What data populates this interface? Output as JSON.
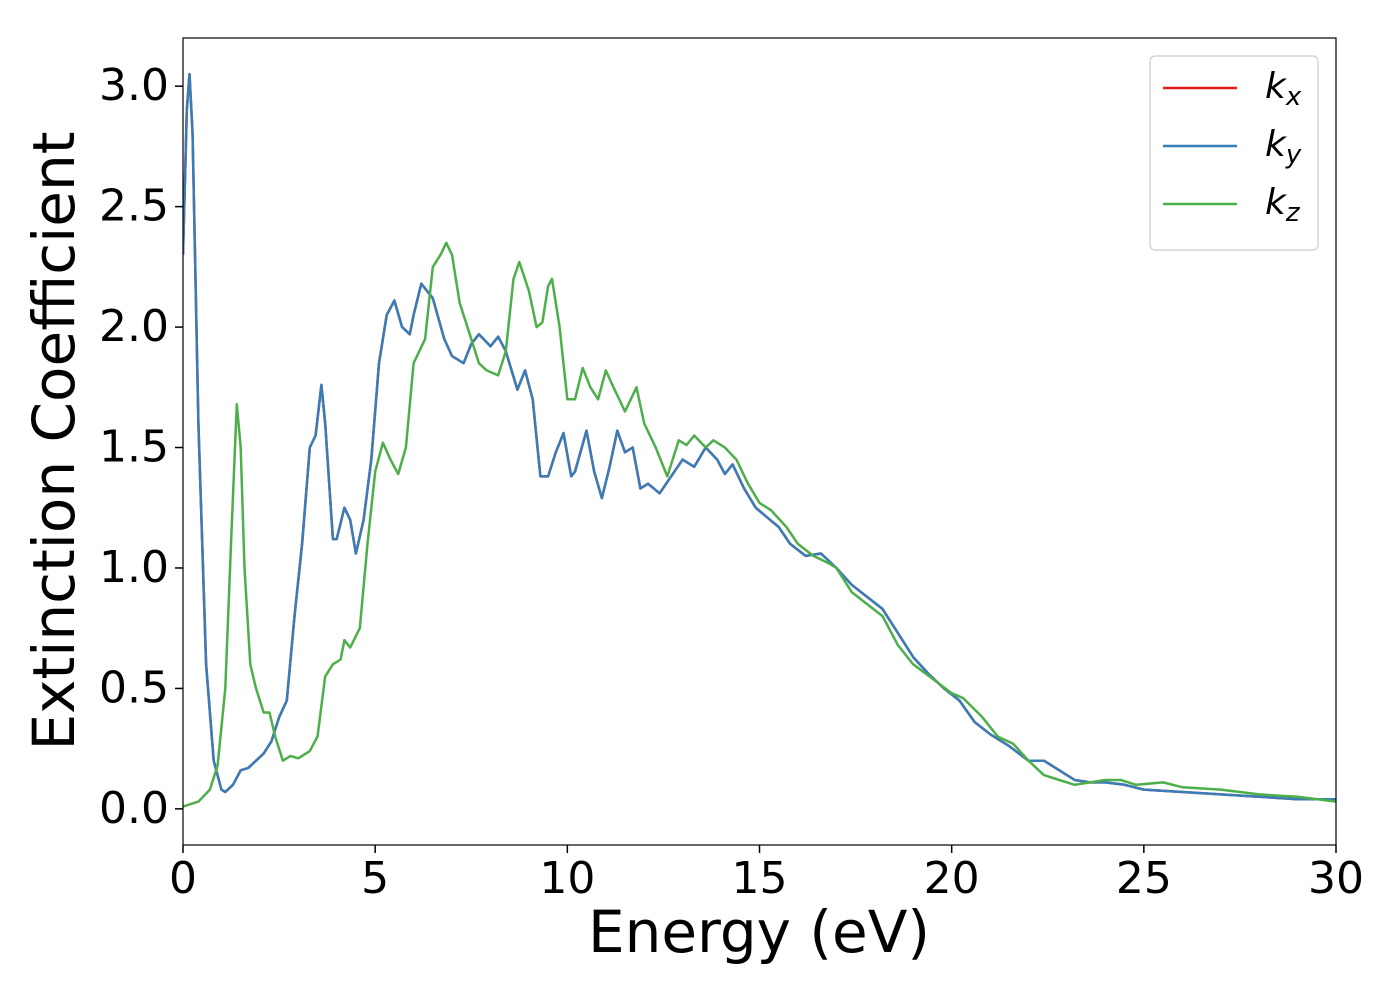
{
  "chart_data": {
    "type": "line",
    "xlabel": "Energy (eV)",
    "ylabel": "Extinction Coefficient",
    "xlim": [
      0,
      30
    ],
    "xticks": [
      0,
      5,
      10,
      15,
      20,
      25,
      30
    ],
    "ylim": [
      -0.15,
      3.2
    ],
    "yticks": [
      {
        "value": 0,
        "label": "0.0"
      },
      0.5,
      {
        "value": 1,
        "label": "1.0"
      },
      1.5,
      {
        "value": 2,
        "label": "2.0"
      },
      2.5,
      {
        "value": 3,
        "label": "3.0"
      }
    ],
    "grid": false,
    "legend": "upper right",
    "series": [
      {
        "name": "kx",
        "color": "#e41a1c",
        "x": [
          0,
          0.1,
          0.17,
          0.25,
          0.4,
          0.6,
          0.8,
          1.0,
          1.1,
          1.3,
          1.5,
          1.7,
          1.9,
          2.1,
          2.3,
          2.5,
          2.7,
          2.9,
          3.1,
          3.3,
          3.45,
          3.6,
          3.7,
          3.9,
          4.0,
          4.2,
          4.35,
          4.5,
          4.7,
          4.9,
          5.1,
          5.3,
          5.5,
          5.7,
          5.9,
          6.0,
          6.2,
          6.5,
          6.8,
          7.0,
          7.3,
          7.5,
          7.7,
          8.0,
          8.2,
          8.4,
          8.7,
          8.9,
          9.1,
          9.3,
          9.5,
          9.7,
          9.9,
          10.1,
          10.2,
          10.5,
          10.7,
          10.9,
          11.1,
          11.3,
          11.5,
          11.7,
          11.9,
          12.1,
          12.4,
          12.7,
          13.0,
          13.3,
          13.6,
          13.9,
          14.1,
          14.3,
          14.6,
          14.9,
          15.2,
          15.5,
          15.8,
          16.2,
          16.6,
          17.0,
          17.4,
          17.8,
          18.2,
          18.6,
          19.0,
          19.4,
          19.8,
          20.2,
          20.6,
          21.0,
          21.5,
          22.0,
          22.4,
          22.8,
          23.2,
          23.6,
          24.0,
          24.5,
          25.0,
          26.0,
          27.0,
          28.0,
          29.0,
          30.0
        ],
        "values": [
          2.3,
          2.9,
          3.05,
          2.8,
          1.6,
          0.6,
          0.2,
          0.08,
          0.07,
          0.1,
          0.16,
          0.17,
          0.2,
          0.23,
          0.28,
          0.38,
          0.45,
          0.8,
          1.1,
          1.5,
          1.55,
          1.76,
          1.6,
          1.12,
          1.12,
          1.25,
          1.2,
          1.06,
          1.2,
          1.45,
          1.85,
          2.05,
          2.11,
          2.0,
          1.97,
          2.05,
          2.18,
          2.12,
          1.95,
          1.88,
          1.85,
          1.93,
          1.97,
          1.92,
          1.96,
          1.9,
          1.74,
          1.82,
          1.7,
          1.38,
          1.38,
          1.48,
          1.56,
          1.38,
          1.4,
          1.57,
          1.4,
          1.29,
          1.42,
          1.57,
          1.48,
          1.5,
          1.33,
          1.35,
          1.31,
          1.38,
          1.45,
          1.42,
          1.5,
          1.45,
          1.39,
          1.43,
          1.33,
          1.25,
          1.21,
          1.17,
          1.1,
          1.05,
          1.06,
          1.0,
          0.93,
          0.88,
          0.83,
          0.73,
          0.63,
          0.56,
          0.5,
          0.45,
          0.36,
          0.31,
          0.26,
          0.2,
          0.2,
          0.16,
          0.12,
          0.11,
          0.11,
          0.1,
          0.08,
          0.07,
          0.06,
          0.05,
          0.04,
          0.04
        ]
      },
      {
        "name": "ky",
        "color": "#377eb8",
        "x": [
          0,
          0.1,
          0.17,
          0.25,
          0.4,
          0.6,
          0.8,
          1.0,
          1.1,
          1.3,
          1.5,
          1.7,
          1.9,
          2.1,
          2.3,
          2.5,
          2.7,
          2.9,
          3.1,
          3.3,
          3.45,
          3.6,
          3.7,
          3.9,
          4.0,
          4.2,
          4.35,
          4.5,
          4.7,
          4.9,
          5.1,
          5.3,
          5.5,
          5.7,
          5.9,
          6.0,
          6.2,
          6.5,
          6.8,
          7.0,
          7.3,
          7.5,
          7.7,
          8.0,
          8.2,
          8.4,
          8.7,
          8.9,
          9.1,
          9.3,
          9.5,
          9.7,
          9.9,
          10.1,
          10.2,
          10.5,
          10.7,
          10.9,
          11.1,
          11.3,
          11.5,
          11.7,
          11.9,
          12.1,
          12.4,
          12.7,
          13.0,
          13.3,
          13.6,
          13.9,
          14.1,
          14.3,
          14.6,
          14.9,
          15.2,
          15.5,
          15.8,
          16.2,
          16.6,
          17.0,
          17.4,
          17.8,
          18.2,
          18.6,
          19.0,
          19.4,
          19.8,
          20.2,
          20.6,
          21.0,
          21.5,
          22.0,
          22.4,
          22.8,
          23.2,
          23.6,
          24.0,
          24.5,
          25.0,
          26.0,
          27.0,
          28.0,
          29.0,
          30.0
        ],
        "values": [
          2.3,
          2.9,
          3.05,
          2.8,
          1.6,
          0.6,
          0.2,
          0.08,
          0.07,
          0.1,
          0.16,
          0.17,
          0.2,
          0.23,
          0.28,
          0.38,
          0.45,
          0.8,
          1.1,
          1.5,
          1.55,
          1.76,
          1.6,
          1.12,
          1.12,
          1.25,
          1.2,
          1.06,
          1.2,
          1.45,
          1.85,
          2.05,
          2.11,
          2.0,
          1.97,
          2.05,
          2.18,
          2.12,
          1.95,
          1.88,
          1.85,
          1.93,
          1.97,
          1.92,
          1.96,
          1.9,
          1.74,
          1.82,
          1.7,
          1.38,
          1.38,
          1.48,
          1.56,
          1.38,
          1.4,
          1.57,
          1.4,
          1.29,
          1.42,
          1.57,
          1.48,
          1.5,
          1.33,
          1.35,
          1.31,
          1.38,
          1.45,
          1.42,
          1.5,
          1.45,
          1.39,
          1.43,
          1.33,
          1.25,
          1.21,
          1.17,
          1.1,
          1.05,
          1.06,
          1.0,
          0.93,
          0.88,
          0.83,
          0.73,
          0.63,
          0.56,
          0.5,
          0.45,
          0.36,
          0.31,
          0.26,
          0.2,
          0.2,
          0.16,
          0.12,
          0.11,
          0.11,
          0.1,
          0.08,
          0.07,
          0.06,
          0.05,
          0.04,
          0.04
        ]
      },
      {
        "name": "kz",
        "color": "#4daf4a",
        "x": [
          0,
          0.4,
          0.7,
          0.9,
          1.1,
          1.25,
          1.4,
          1.5,
          1.6,
          1.75,
          1.9,
          2.1,
          2.25,
          2.4,
          2.6,
          2.8,
          3.0,
          3.3,
          3.5,
          3.7,
          3.9,
          4.1,
          4.2,
          4.35,
          4.6,
          4.8,
          5.0,
          5.2,
          5.4,
          5.6,
          5.8,
          6.0,
          6.3,
          6.5,
          6.7,
          6.85,
          7.0,
          7.2,
          7.5,
          7.7,
          7.9,
          8.2,
          8.4,
          8.6,
          8.75,
          9.0,
          9.2,
          9.35,
          9.5,
          9.6,
          9.8,
          10.0,
          10.2,
          10.4,
          10.6,
          10.8,
          11.0,
          11.2,
          11.5,
          11.8,
          12.0,
          12.3,
          12.6,
          12.9,
          13.1,
          13.3,
          13.6,
          13.8,
          14.1,
          14.4,
          14.7,
          15.0,
          15.3,
          15.7,
          16.0,
          16.4,
          16.8,
          17.0,
          17.4,
          17.8,
          18.2,
          18.6,
          19.0,
          19.5,
          20.0,
          20.3,
          20.8,
          21.2,
          21.6,
          22.0,
          22.4,
          22.8,
          23.2,
          23.6,
          24.0,
          24.4,
          24.8,
          25.5,
          26.0,
          27.0,
          28.0,
          29.0,
          30.0
        ],
        "values": [
          0.01,
          0.03,
          0.08,
          0.18,
          0.5,
          1.1,
          1.68,
          1.5,
          1.0,
          0.6,
          0.5,
          0.4,
          0.4,
          0.3,
          0.2,
          0.22,
          0.21,
          0.24,
          0.3,
          0.55,
          0.6,
          0.62,
          0.7,
          0.67,
          0.75,
          1.1,
          1.4,
          1.52,
          1.45,
          1.39,
          1.5,
          1.85,
          1.95,
          2.25,
          2.3,
          2.35,
          2.3,
          2.1,
          1.95,
          1.85,
          1.82,
          1.8,
          1.9,
          2.2,
          2.27,
          2.15,
          2.0,
          2.02,
          2.17,
          2.2,
          2.0,
          1.7,
          1.7,
          1.83,
          1.75,
          1.7,
          1.82,
          1.75,
          1.65,
          1.75,
          1.6,
          1.5,
          1.38,
          1.53,
          1.51,
          1.55,
          1.5,
          1.53,
          1.5,
          1.45,
          1.35,
          1.27,
          1.24,
          1.17,
          1.1,
          1.05,
          1.02,
          1.0,
          0.9,
          0.85,
          0.8,
          0.68,
          0.6,
          0.54,
          0.48,
          0.46,
          0.38,
          0.3,
          0.27,
          0.2,
          0.14,
          0.12,
          0.1,
          0.11,
          0.12,
          0.12,
          0.1,
          0.11,
          0.09,
          0.08,
          0.06,
          0.05,
          0.03
        ]
      }
    ]
  }
}
